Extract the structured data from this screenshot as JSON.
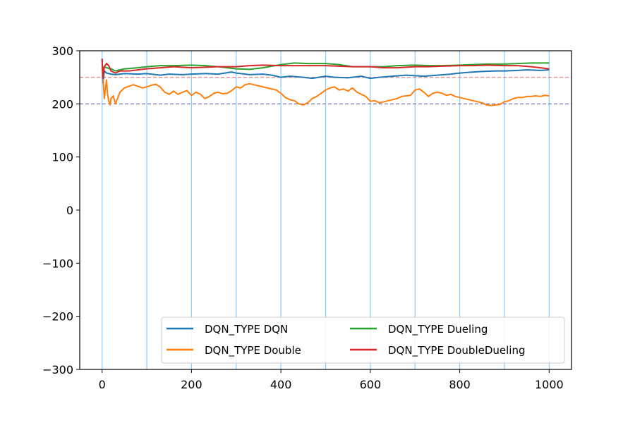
{
  "chart_data": {
    "type": "line",
    "title": "",
    "xlabel": "",
    "ylabel": "",
    "xlim": [
      -50,
      1050
    ],
    "ylim": [
      -300,
      300
    ],
    "xticks": [
      0,
      200,
      400,
      600,
      800,
      1000
    ],
    "xtick_labels": [
      "0",
      "200",
      "400",
      "600",
      "800",
      "1000"
    ],
    "yticks": [
      -300,
      -200,
      -100,
      0,
      100,
      200,
      300
    ],
    "ytick_labels": [
      "−300",
      "−200",
      "−100",
      "0",
      "100",
      "200",
      "300"
    ],
    "vertical_lines": [
      0,
      100,
      200,
      300,
      400,
      500,
      600,
      700,
      800,
      900,
      1000
    ],
    "vertical_line_color": "#87cefa",
    "horizontal_lines": [
      {
        "y": 250,
        "color": "#e57373"
      },
      {
        "y": 200,
        "color": "#6a6ab0"
      }
    ],
    "legend_placement": "lower-right",
    "series": [
      {
        "name": "DQN_TYPE DQN",
        "color": "#1f77b4",
        "x": [
          0,
          2,
          5,
          10,
          20,
          30,
          50,
          80,
          100,
          130,
          150,
          180,
          200,
          230,
          260,
          290,
          300,
          330,
          360,
          380,
          400,
          420,
          450,
          470,
          500,
          520,
          550,
          580,
          600,
          620,
          650,
          680,
          700,
          720,
          750,
          780,
          800,
          830,
          850,
          880,
          900,
          930,
          950,
          980,
          1000
        ],
        "y": [
          285,
          240,
          262,
          258,
          256,
          255,
          257,
          256,
          257,
          254,
          256,
          255,
          256,
          257,
          256,
          260,
          258,
          255,
          256,
          254,
          250,
          252,
          250,
          248,
          252,
          250,
          249,
          252,
          248,
          250,
          252,
          254,
          253,
          252,
          254,
          256,
          258,
          260,
          261,
          262,
          262,
          263,
          264,
          263,
          264
        ]
      },
      {
        "name": "DQN_TYPE Double",
        "color": "#ff7f0e",
        "x": [
          0,
          2,
          5,
          8,
          10,
          12,
          15,
          18,
          20,
          25,
          30,
          40,
          50,
          70,
          90,
          100,
          110,
          120,
          130,
          140,
          150,
          160,
          170,
          180,
          190,
          200,
          210,
          220,
          230,
          240,
          250,
          260,
          270,
          280,
          290,
          300,
          310,
          320,
          330,
          340,
          350,
          360,
          370,
          380,
          390,
          400,
          410,
          420,
          430,
          440,
          450,
          460,
          470,
          480,
          490,
          500,
          510,
          520,
          530,
          540,
          550,
          560,
          570,
          580,
          590,
          600,
          610,
          620,
          630,
          640,
          650,
          660,
          670,
          680,
          690,
          700,
          710,
          720,
          730,
          740,
          750,
          760,
          770,
          780,
          790,
          800,
          810,
          820,
          830,
          840,
          850,
          860,
          870,
          880,
          890,
          900,
          910,
          920,
          930,
          940,
          950,
          960,
          970,
          980,
          990,
          1000
        ],
        "y": [
          268,
          250,
          210,
          232,
          245,
          220,
          205,
          198,
          210,
          215,
          200,
          222,
          230,
          236,
          230,
          232,
          235,
          237,
          232,
          222,
          218,
          224,
          218,
          222,
          225,
          216,
          222,
          218,
          210,
          214,
          220,
          222,
          219,
          220,
          225,
          232,
          230,
          236,
          238,
          236,
          234,
          232,
          230,
          228,
          226,
          220,
          212,
          208,
          206,
          200,
          198,
          202,
          210,
          214,
          220,
          226,
          230,
          232,
          226,
          228,
          224,
          230,
          222,
          218,
          214,
          205,
          206,
          202,
          204,
          206,
          208,
          210,
          214,
          215,
          216,
          226,
          228,
          222,
          214,
          220,
          222,
          220,
          216,
          218,
          214,
          212,
          210,
          208,
          206,
          204,
          202,
          198,
          197,
          198,
          199,
          204,
          206,
          210,
          212,
          212,
          214,
          214,
          215,
          214,
          216,
          215
        ]
      },
      {
        "name": "DQN_TYPE Dueling",
        "color": "#2ca02c",
        "x": [
          0,
          2,
          5,
          10,
          20,
          30,
          50,
          80,
          100,
          130,
          160,
          200,
          230,
          260,
          300,
          330,
          360,
          400,
          430,
          460,
          500,
          530,
          560,
          600,
          630,
          660,
          700,
          730,
          760,
          800,
          830,
          860,
          900,
          930,
          960,
          1000
        ],
        "y": [
          272,
          265,
          270,
          268,
          266,
          262,
          266,
          268,
          270,
          272,
          272,
          273,
          272,
          270,
          266,
          265,
          268,
          274,
          277,
          276,
          276,
          274,
          270,
          270,
          270,
          272,
          273,
          272,
          272,
          273,
          274,
          275,
          275,
          276,
          277,
          277
        ]
      },
      {
        "name": "DQN_TYPE DoubleDueling",
        "color": "#d62728",
        "x": [
          0,
          2,
          5,
          10,
          15,
          20,
          30,
          40,
          60,
          80,
          100,
          130,
          160,
          200,
          230,
          260,
          300,
          330,
          360,
          400,
          430,
          460,
          500,
          530,
          560,
          600,
          630,
          660,
          700,
          730,
          760,
          800,
          830,
          860,
          900,
          930,
          960,
          980,
          1000
        ],
        "y": [
          285,
          248,
          270,
          276,
          272,
          262,
          258,
          262,
          262,
          264,
          266,
          268,
          270,
          268,
          269,
          270,
          270,
          272,
          273,
          272,
          272,
          272,
          272,
          271,
          270,
          270,
          268,
          268,
          270,
          270,
          271,
          272,
          272,
          273,
          272,
          272,
          270,
          268,
          266
        ]
      }
    ]
  }
}
